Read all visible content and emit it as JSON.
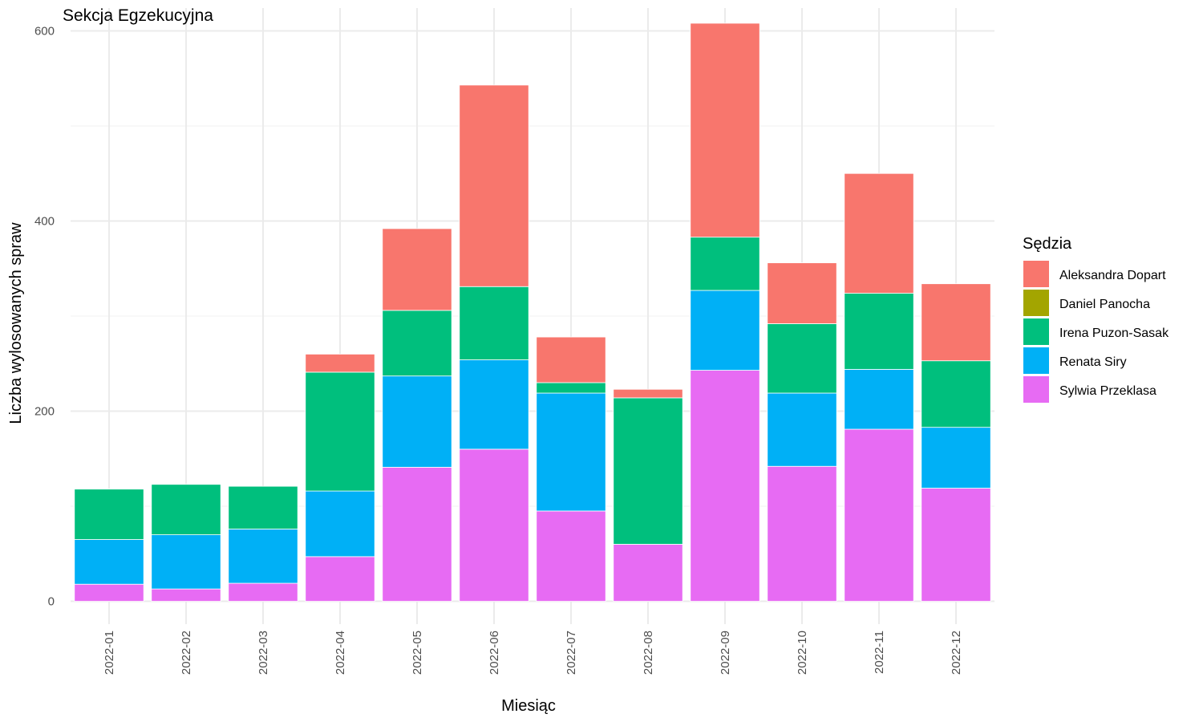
{
  "chart_data": {
    "type": "bar",
    "stacked": true,
    "title": "Sekcja Egzekucyjna",
    "xlabel": "Miesiąc",
    "ylabel": "Liczba wylosowanych spraw",
    "ylim": [
      -24,
      624
    ],
    "y_ticks": [
      0,
      200,
      400,
      600
    ],
    "y_minor_ticks": [
      100,
      300,
      500
    ],
    "grid": true,
    "legend": {
      "title": "Sędzia",
      "position": "right"
    },
    "categories": [
      "2022-01",
      "2022-02",
      "2022-03",
      "2022-04",
      "2022-05",
      "2022-06",
      "2022-07",
      "2022-08",
      "2022-09",
      "2022-10",
      "2022-11",
      "2022-12"
    ],
    "series": [
      {
        "name": "Aleksandra Dopart",
        "color": "#F8766D",
        "values": [
          0,
          0,
          0,
          19,
          86,
          212,
          48,
          9,
          225,
          64,
          126,
          81
        ]
      },
      {
        "name": "Daniel Panocha",
        "color": "#A3A500",
        "values": [
          0,
          0,
          0,
          0,
          0,
          0,
          0,
          0,
          0,
          0,
          0,
          0
        ]
      },
      {
        "name": "Irena Puzon-Sasak",
        "color": "#00BF7D",
        "values": [
          53,
          53,
          45,
          125,
          69,
          77,
          11,
          154,
          56,
          73,
          80,
          70
        ]
      },
      {
        "name": "Renata Siry",
        "color": "#00B0F6",
        "values": [
          47,
          57,
          57,
          69,
          96,
          94,
          124,
          0,
          84,
          77,
          63,
          64
        ]
      },
      {
        "name": "Sylwia Przeklasa",
        "color": "#E76BF3",
        "values": [
          18,
          13,
          19,
          47,
          141,
          160,
          95,
          60,
          243,
          142,
          181,
          119
        ]
      }
    ]
  }
}
